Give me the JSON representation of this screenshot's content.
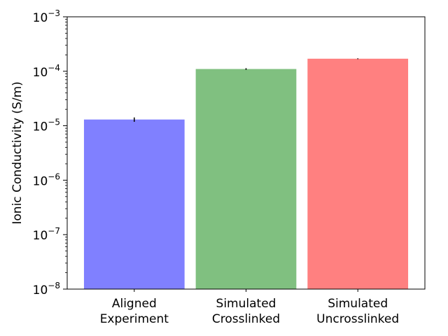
{
  "chart_data": {
    "type": "bar",
    "yscale": "log",
    "ylabel": "Ionic Conductivity (S/m)",
    "xlabel": "",
    "title": "",
    "ylim": [
      1e-08,
      0.001
    ],
    "yticks": [
      {
        "value": 1e-08,
        "base": "10",
        "exp": "−8"
      },
      {
        "value": 1e-07,
        "base": "10",
        "exp": "−7"
      },
      {
        "value": 1e-06,
        "base": "10",
        "exp": "−6"
      },
      {
        "value": 1e-05,
        "base": "10",
        "exp": "−5"
      },
      {
        "value": 0.0001,
        "base": "10",
        "exp": "−4"
      },
      {
        "value": 0.001,
        "base": "10",
        "exp": "−3"
      }
    ],
    "categories": [
      [
        "Aligned",
        "Experiment"
      ],
      [
        "Simulated",
        "Crosslinked"
      ],
      [
        "Simulated",
        "Uncrosslinked"
      ]
    ],
    "values": [
      1.3e-05,
      0.00011,
      0.00017
    ],
    "errors": [
      1.2e-06,
      4e-06,
      3e-06
    ],
    "colors": [
      "#8080ff",
      "#80c080",
      "#ff8080"
    ],
    "grid": false,
    "legend": "none"
  }
}
